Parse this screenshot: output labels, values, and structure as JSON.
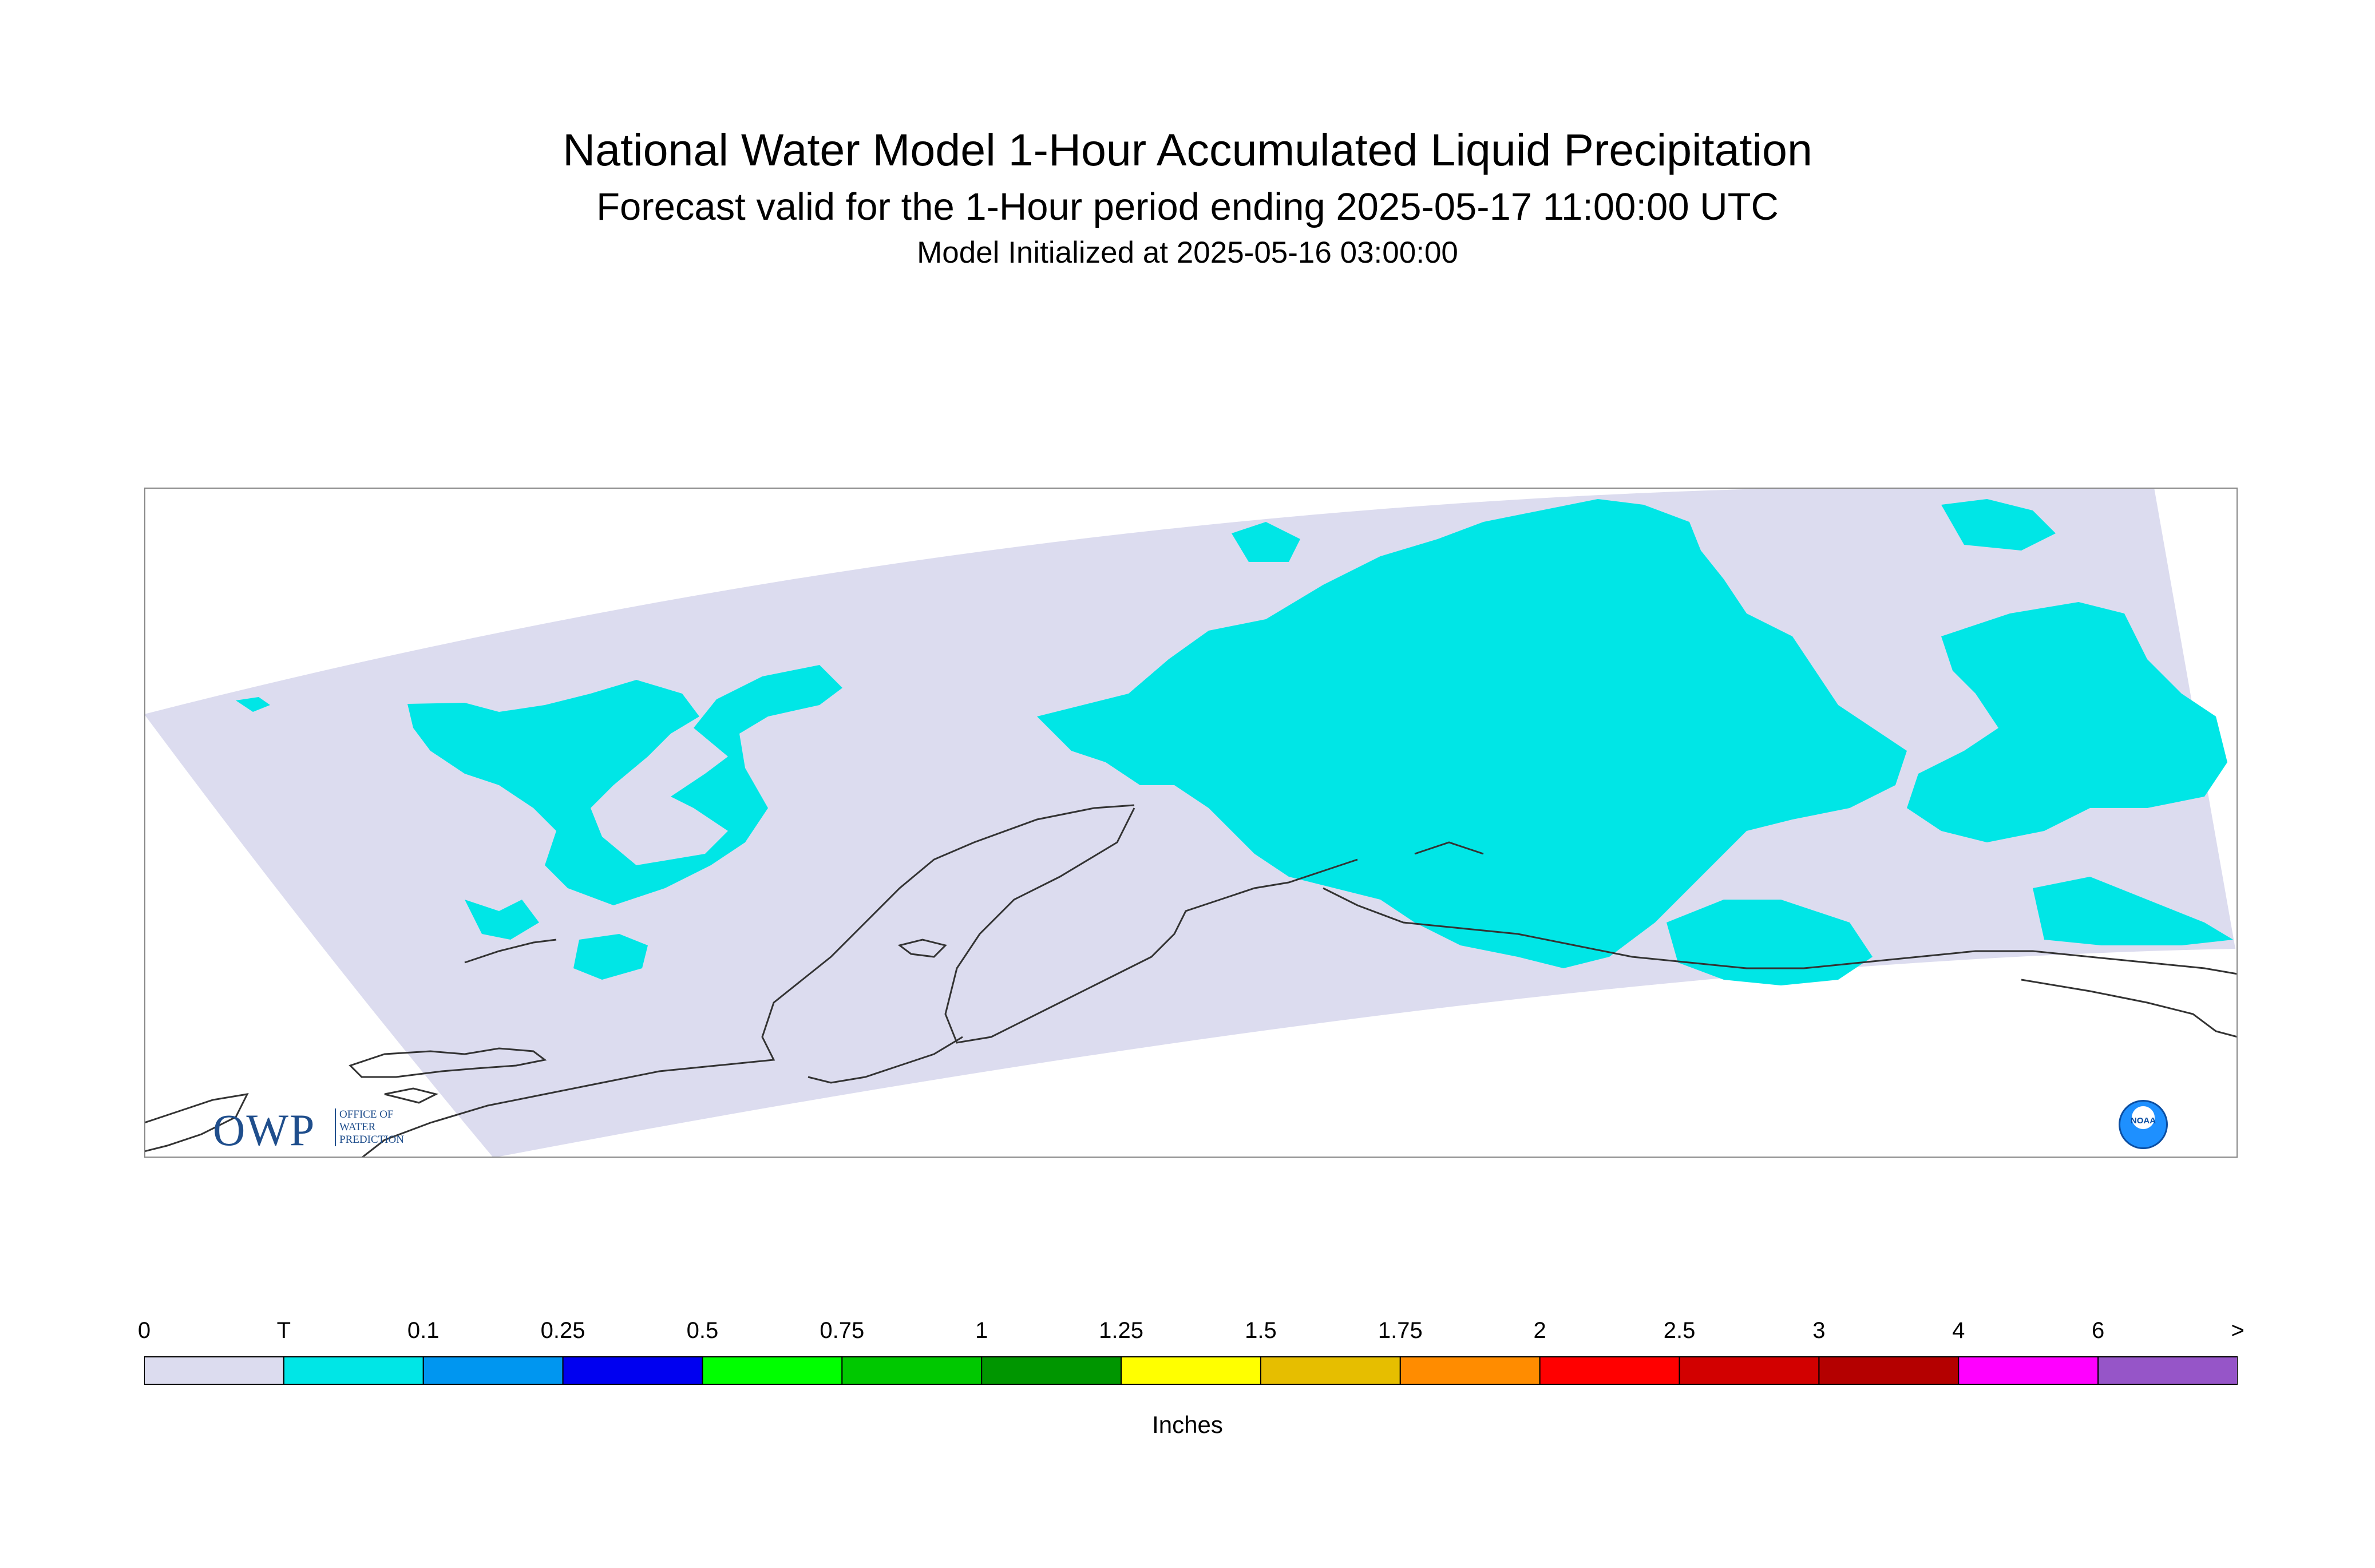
{
  "title": "National Water Model 1-Hour Accumulated Liquid Precipitation",
  "subtitle": "Forecast valid for the 1-Hour period ending 2025-05-17 11:00:00 UTC",
  "init": "Model Initialized at 2025-05-16 03:00:00",
  "map": {
    "background_color": "#ffffff",
    "domain_fill": "#dcdcef",
    "precip_fill": "#00e6e6",
    "coast_color": "#333333",
    "frame_color": "#888888"
  },
  "logos": {
    "owp": "OWP",
    "owp_subtitle": [
      "OFFICE OF",
      "WATER",
      "PREDICTION"
    ],
    "noaa": "NOAA"
  },
  "legend": {
    "units": "Inches",
    "ticks": [
      "0",
      "T",
      "0.1",
      "0.25",
      "0.5",
      "0.75",
      "1",
      "1.25",
      "1.5",
      "1.75",
      "2",
      "2.5",
      "3",
      "4",
      "6",
      ">"
    ],
    "colors": [
      "#dcdcef",
      "#00e6e6",
      "#0096f0",
      "#0000f0",
      "#00ff00",
      "#00c800",
      "#009600",
      "#ffff00",
      "#e6be00",
      "#ff8c00",
      "#ff0000",
      "#d20000",
      "#b40000",
      "#ff00ff",
      "#9655c8"
    ]
  }
}
